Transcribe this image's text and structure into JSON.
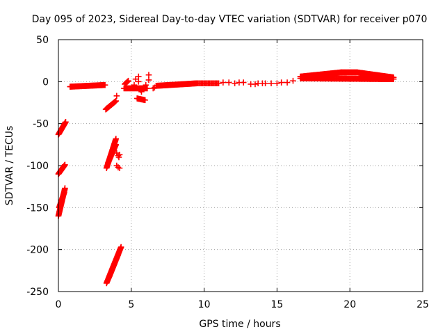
{
  "chart_data": {
    "type": "scatter",
    "title": "Day 095 of 2023, Sidereal Day-to-day VTEC variation (SDTVAR) for receiver p070",
    "xlabel": "GPS time / hours",
    "ylabel": "SDTVAR / TECUs",
    "xlim": [
      0,
      25
    ],
    "ylim": [
      -250,
      50
    ],
    "xticks": [
      0,
      5,
      10,
      15,
      20,
      25
    ],
    "yticks": [
      50,
      0,
      -50,
      -100,
      -150,
      -200,
      -250
    ],
    "grid": true,
    "marker": "plus",
    "color": "#ff0000",
    "series": [
      {
        "name": "SDTVAR",
        "segments": [
          {
            "from": [
              0.8,
              -6
            ],
            "to": [
              3.2,
              -4
            ],
            "step": 0.05
          },
          {
            "from": [
              6.7,
              -5
            ],
            "to": [
              9.5,
              -2
            ],
            "step": 0.05
          },
          {
            "from": [
              9.5,
              -2
            ],
            "to": [
              11.0,
              -2
            ],
            "step": 0.08
          },
          {
            "from": [
              16.6,
              6
            ],
            "to": [
              19.4,
              11
            ],
            "step": 0.04
          },
          {
            "from": [
              19.4,
              11
            ],
            "to": [
              20.5,
              11
            ],
            "step": 0.04
          },
          {
            "from": [
              20.5,
              11
            ],
            "to": [
              23.0,
              5
            ],
            "step": 0.04
          },
          {
            "from": [
              16.6,
              4
            ],
            "to": [
              23.0,
              3
            ],
            "step": 0.06
          },
          {
            "from": [
              0.0,
              -63
            ],
            "to": [
              0.5,
              -48
            ],
            "step": 0.02
          },
          {
            "from": [
              0.0,
              -110
            ],
            "to": [
              0.45,
              -99
            ],
            "step": 0.02
          },
          {
            "from": [
              0.0,
              -160
            ],
            "to": [
              0.45,
              -127
            ],
            "step": 0.015
          },
          {
            "from": [
              0.05,
              -150
            ],
            "to": [
              0.4,
              -132
            ],
            "step": 0.02
          },
          {
            "from": [
              3.25,
              -33
            ],
            "to": [
              3.95,
              -23
            ],
            "step": 0.035
          },
          {
            "from": [
              3.3,
              -103
            ],
            "to": [
              3.95,
              -68
            ],
            "step": 0.02
          },
          {
            "from": [
              3.4,
              -97
            ],
            "to": [
              3.95,
              -75
            ],
            "step": 0.025
          },
          {
            "from": [
              3.3,
              -240
            ],
            "to": [
              4.3,
              -197
            ],
            "step": 0.02
          },
          {
            "from": [
              3.45,
              -234
            ],
            "to": [
              4.1,
              -206
            ],
            "step": 0.025
          },
          {
            "from": [
              5.4,
              -20
            ],
            "to": [
              5.95,
              -22
            ],
            "step": 0.05
          },
          {
            "from": [
              4.5,
              -8
            ],
            "to": [
              6.1,
              -8
            ],
            "step": 0.06
          },
          {
            "from": [
              4.55,
              -3
            ],
            "to": [
              4.8,
              1
            ],
            "step": 0.05
          }
        ],
        "points": [
          [
            11.3,
            -1
          ],
          [
            11.7,
            -1
          ],
          [
            12.1,
            -2
          ],
          [
            12.4,
            -1
          ],
          [
            12.7,
            -1
          ],
          [
            13.2,
            -3
          ],
          [
            13.5,
            -3
          ],
          [
            13.7,
            -2
          ],
          [
            14.0,
            -2
          ],
          [
            14.2,
            -2
          ],
          [
            14.6,
            -2
          ],
          [
            15.0,
            -2
          ],
          [
            15.3,
            -1
          ],
          [
            15.7,
            -1
          ],
          [
            16.1,
            1
          ],
          [
            4.0,
            -17
          ],
          [
            4.0,
            -85
          ],
          [
            4.1,
            -88
          ],
          [
            4.15,
            -90
          ],
          [
            4.2,
            -87
          ],
          [
            4.0,
            -100
          ],
          [
            4.1,
            -102
          ],
          [
            4.2,
            -103
          ],
          [
            5.3,
            3
          ],
          [
            5.5,
            6
          ],
          [
            5.5,
            0
          ],
          [
            5.2,
            -4
          ],
          [
            5.65,
            -10
          ],
          [
            5.7,
            -12
          ],
          [
            6.2,
            8
          ],
          [
            6.2,
            2
          ],
          [
            6.0,
            -4
          ],
          [
            6.5,
            -8
          ],
          [
            6.6,
            -7
          ]
        ]
      }
    ]
  }
}
